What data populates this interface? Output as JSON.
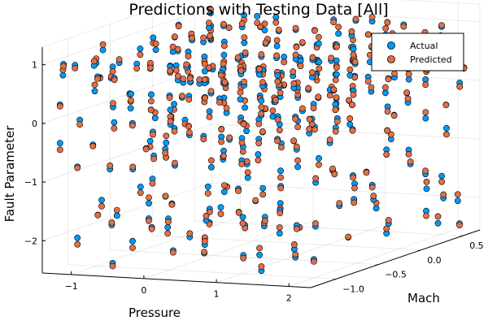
{
  "chart_data": {
    "type": "scatter",
    "projection": "3d",
    "title": "Predictions with Testing Data [All]",
    "xlabel": "Pressure",
    "ylabel": "Mach",
    "zlabel": "Fault Parameter",
    "x_ticks": [
      "−1",
      "0",
      "1",
      "2"
    ],
    "y_ticks": [
      "−1.0",
      "−0.5",
      "0.0",
      "0.5"
    ],
    "z_ticks": [
      "−2",
      "−1",
      "0",
      "1"
    ],
    "xlim": [
      -1.4,
      2.3
    ],
    "ylim": [
      -1.3,
      0.7
    ],
    "zlim": [
      -2.55,
      1.3
    ],
    "grid": true,
    "legend_position": "top-right",
    "series": [
      {
        "name": "Actual",
        "color": "#009AFA"
      },
      {
        "name": "Predicted",
        "color": "#E26F46"
      }
    ],
    "pressure_levels": [
      -1.3,
      -1.1,
      -0.85,
      -0.6,
      -0.35,
      -0.1,
      0.15,
      0.4,
      0.65,
      0.9,
      1.15,
      1.4,
      1.65,
      1.9,
      2.15
    ],
    "mach_levels": [
      -1.15,
      -0.7,
      -0.25,
      0.2,
      0.6
    ],
    "fault_levels": [
      -2.4,
      -2.0,
      -1.6,
      -1.2,
      -0.8,
      -0.4,
      0.0,
      0.25,
      0.5,
      0.75,
      0.95
    ],
    "prediction_noise": 0.12
  }
}
